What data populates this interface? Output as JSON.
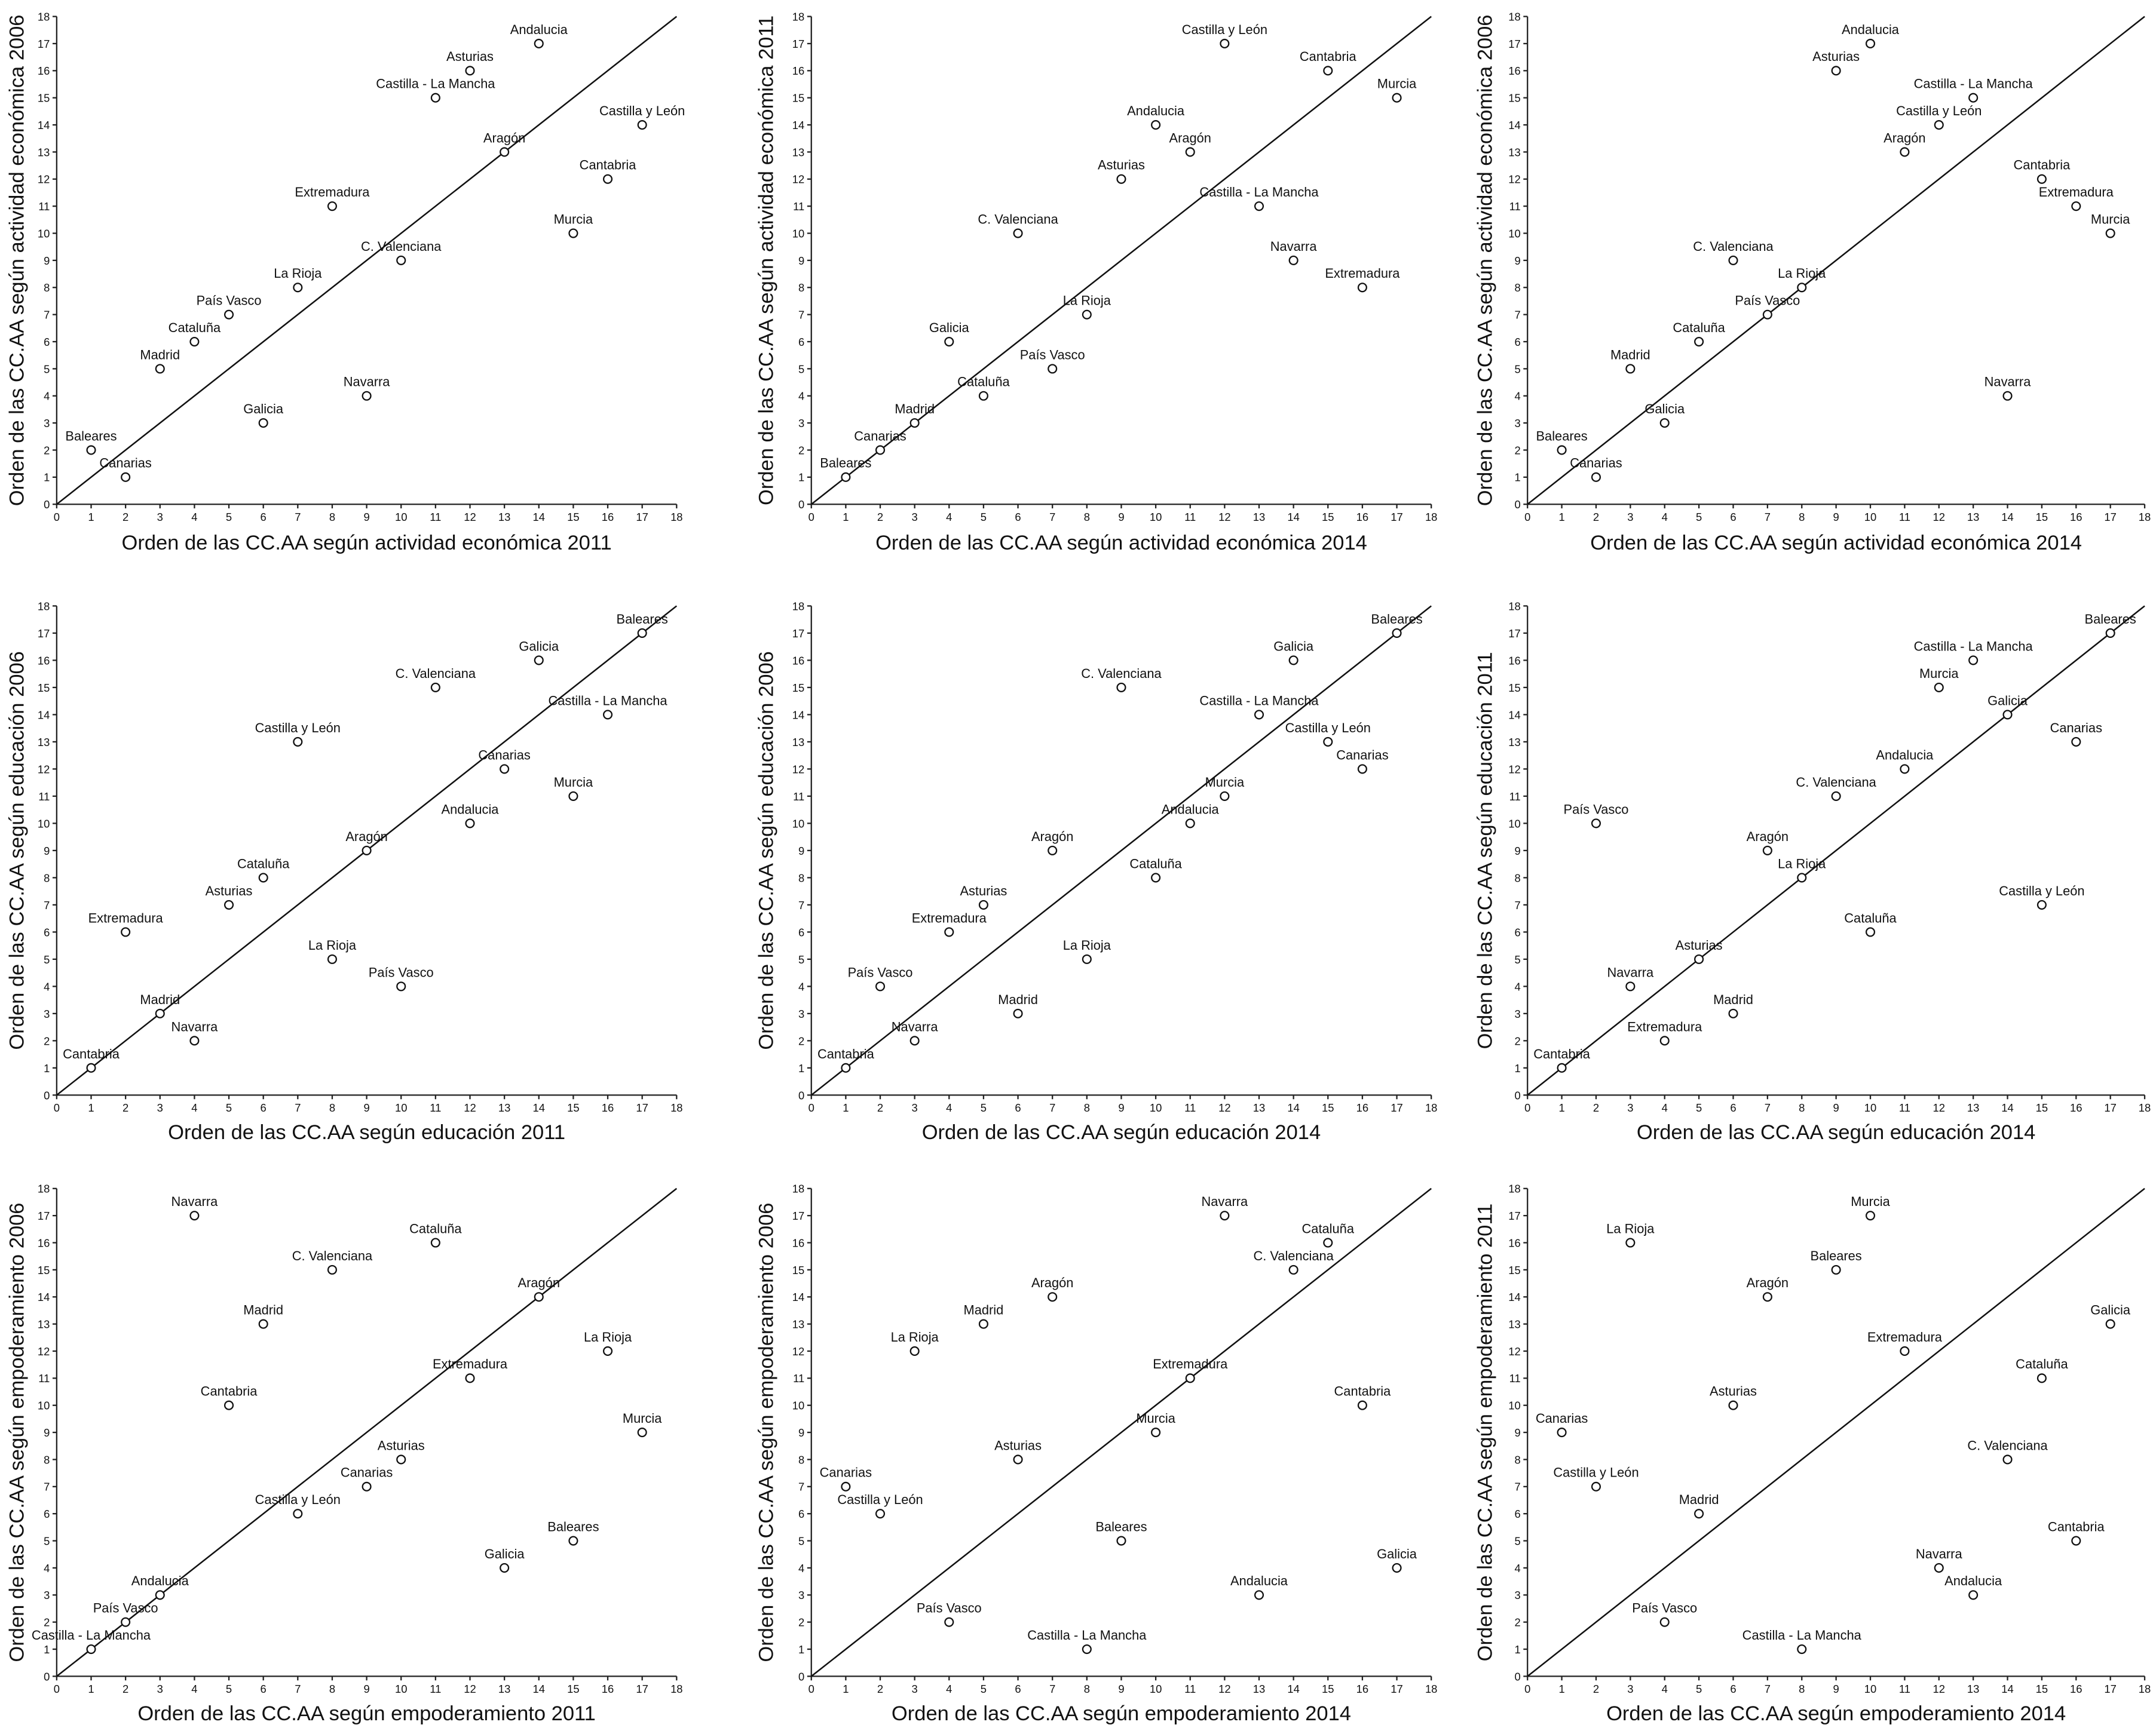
{
  "chart_data": [
    {
      "type": "scatter",
      "x_label": "Orden de las CC.AA según actividad económica 2011",
      "y_label": "Orden de las CC.AA según actividad económica 2006",
      "xlim": [
        0,
        18
      ],
      "ylim": [
        0,
        18
      ],
      "xticks": [
        0,
        1,
        2,
        3,
        4,
        5,
        6,
        7,
        8,
        9,
        10,
        11,
        12,
        13,
        14,
        15,
        16,
        17,
        18
      ],
      "yticks": [
        0,
        1,
        2,
        3,
        4,
        5,
        6,
        7,
        8,
        9,
        10,
        11,
        12,
        13,
        14,
        15,
        16,
        17,
        18
      ],
      "labels": [
        "Andalucia",
        "Asturias",
        "Castilla - La Mancha",
        "Castilla y León",
        "Aragón",
        "Cantabria",
        "Extremadura",
        "Murcia",
        "C. Valenciana",
        "La Rioja",
        "País Vasco",
        "Cataluña",
        "Madrid",
        "Navarra",
        "Galicia",
        "Baleares",
        "Canarias"
      ],
      "x": [
        14,
        12,
        11,
        17,
        13,
        16,
        8,
        15,
        10,
        7,
        5,
        4,
        3,
        9,
        6,
        1,
        2
      ],
      "values": [
        17,
        16,
        15,
        14,
        13,
        12,
        11,
        10,
        9,
        8,
        7,
        6,
        5,
        4,
        3,
        2,
        1
      ]
    },
    {
      "type": "scatter",
      "x_label": "Orden de las CC.AA según actividad económica 2014",
      "y_label": "Orden de las CC.AA según actividad económica 2011",
      "xlim": [
        0,
        18
      ],
      "ylim": [
        0,
        18
      ],
      "xticks": [
        0,
        1,
        2,
        3,
        4,
        5,
        6,
        7,
        8,
        9,
        10,
        11,
        12,
        13,
        14,
        15,
        16,
        17,
        18
      ],
      "yticks": [
        0,
        1,
        2,
        3,
        4,
        5,
        6,
        7,
        8,
        9,
        10,
        11,
        12,
        13,
        14,
        15,
        16,
        17,
        18
      ],
      "labels": [
        "Castilla y León",
        "Cantabria",
        "Murcia",
        "Andalucia",
        "Aragón",
        "Asturias",
        "Castilla - La Mancha",
        "C. Valenciana",
        "Navarra",
        "Extremadura",
        "La Rioja",
        "Galicia",
        "País Vasco",
        "Cataluña",
        "Madrid",
        "Canarias",
        "Baleares"
      ],
      "x": [
        12,
        15,
        17,
        10,
        11,
        9,
        13,
        6,
        14,
        16,
        8,
        4,
        7,
        5,
        3,
        2,
        1
      ],
      "values": [
        17,
        16,
        15,
        14,
        13,
        12,
        11,
        10,
        9,
        8,
        7,
        6,
        5,
        4,
        3,
        2,
        1
      ]
    },
    {
      "type": "scatter",
      "x_label": "Orden de las CC.AA según actividad económica 2014",
      "y_label": "Orden de las CC.AA según actividad económica 2006",
      "xlim": [
        0,
        18
      ],
      "ylim": [
        0,
        18
      ],
      "xticks": [
        0,
        1,
        2,
        3,
        4,
        5,
        6,
        7,
        8,
        9,
        10,
        11,
        12,
        13,
        14,
        15,
        16,
        17,
        18
      ],
      "yticks": [
        0,
        1,
        2,
        3,
        4,
        5,
        6,
        7,
        8,
        9,
        10,
        11,
        12,
        13,
        14,
        15,
        16,
        17,
        18
      ],
      "labels": [
        "Andalucia",
        "Asturias",
        "Castilla - La Mancha",
        "Castilla y León",
        "Aragón",
        "Cantabria",
        "Extremadura",
        "Murcia",
        "C. Valenciana",
        "La Rioja",
        "País Vasco",
        "Cataluña",
        "Madrid",
        "Navarra",
        "Galicia",
        "Baleares",
        "Canarias"
      ],
      "x": [
        10,
        9,
        13,
        12,
        11,
        15,
        16,
        17,
        6,
        8,
        7,
        5,
        3,
        14,
        4,
        1,
        2
      ],
      "values": [
        17,
        16,
        15,
        14,
        13,
        12,
        11,
        10,
        9,
        8,
        7,
        6,
        5,
        4,
        3,
        2,
        1
      ]
    },
    {
      "type": "scatter",
      "x_label": "Orden de las CC.AA según educación 2011",
      "y_label": "Orden de las CC.AA según educación 2006",
      "xlim": [
        0,
        18
      ],
      "ylim": [
        0,
        18
      ],
      "xticks": [
        0,
        1,
        2,
        3,
        4,
        5,
        6,
        7,
        8,
        9,
        10,
        11,
        12,
        13,
        14,
        15,
        16,
        17,
        18
      ],
      "yticks": [
        0,
        1,
        2,
        3,
        4,
        5,
        6,
        7,
        8,
        9,
        10,
        11,
        12,
        13,
        14,
        15,
        16,
        17,
        18
      ],
      "labels": [
        "Baleares",
        "Galicia",
        "C. Valenciana",
        "Castilla - La Mancha",
        "Castilla y León",
        "Canarias",
        "Murcia",
        "Andalucia",
        "Aragón",
        "Cataluña",
        "Asturias",
        "Extremadura",
        "La Rioja",
        "País Vasco",
        "Madrid",
        "Navarra",
        "Cantabria"
      ],
      "x": [
        17,
        14,
        11,
        16,
        7,
        13,
        15,
        12,
        9,
        6,
        5,
        2,
        8,
        10,
        3,
        4,
        1
      ],
      "values": [
        17,
        16,
        15,
        14,
        13,
        12,
        11,
        10,
        9,
        8,
        7,
        6,
        5,
        4,
        3,
        2,
        1
      ]
    },
    {
      "type": "scatter",
      "x_label": "Orden de las CC.AA según educación 2014",
      "y_label": "Orden de las CC.AA según educación 2006",
      "xlim": [
        0,
        18
      ],
      "ylim": [
        0,
        18
      ],
      "xticks": [
        0,
        1,
        2,
        3,
        4,
        5,
        6,
        7,
        8,
        9,
        10,
        11,
        12,
        13,
        14,
        15,
        16,
        17,
        18
      ],
      "yticks": [
        0,
        1,
        2,
        3,
        4,
        5,
        6,
        7,
        8,
        9,
        10,
        11,
        12,
        13,
        14,
        15,
        16,
        17,
        18
      ],
      "labels": [
        "Baleares",
        "Galicia",
        "C. Valenciana",
        "Castilla - La Mancha",
        "Castilla y León",
        "Canarias",
        "Murcia",
        "Andalucia",
        "Aragón",
        "Cataluña",
        "Asturias",
        "Extremadura",
        "La Rioja",
        "País Vasco",
        "Madrid",
        "Navarra",
        "Cantabria"
      ],
      "x": [
        17,
        14,
        9,
        13,
        15,
        16,
        12,
        11,
        7,
        10,
        5,
        4,
        8,
        2,
        6,
        3,
        1
      ],
      "values": [
        17,
        16,
        15,
        14,
        13,
        12,
        11,
        10,
        9,
        8,
        7,
        6,
        5,
        4,
        3,
        2,
        1
      ]
    },
    {
      "type": "scatter",
      "x_label": "Orden de las CC.AA según educación 2014",
      "y_label": "Orden de las CC.AA según educación 2011",
      "xlim": [
        0,
        18
      ],
      "ylim": [
        0,
        18
      ],
      "xticks": [
        0,
        1,
        2,
        3,
        4,
        5,
        6,
        7,
        8,
        9,
        10,
        11,
        12,
        13,
        14,
        15,
        16,
        17,
        18
      ],
      "yticks": [
        0,
        1,
        2,
        3,
        4,
        5,
        6,
        7,
        8,
        9,
        10,
        11,
        12,
        13,
        14,
        15,
        16,
        17,
        18
      ],
      "labels": [
        "Baleares",
        "Castilla - La Mancha",
        "Murcia",
        "Galicia",
        "Canarias",
        "Andalucia",
        "C. Valenciana",
        "País Vasco",
        "Aragón",
        "La Rioja",
        "Castilla y León",
        "Cataluña",
        "Asturias",
        "Navarra",
        "Madrid",
        "Extremadura",
        "Cantabria"
      ],
      "x": [
        17,
        13,
        12,
        14,
        16,
        11,
        9,
        2,
        7,
        8,
        15,
        10,
        5,
        3,
        6,
        4,
        1
      ],
      "values": [
        17,
        16,
        15,
        14,
        13,
        12,
        11,
        10,
        9,
        8,
        7,
        6,
        5,
        4,
        3,
        2,
        1
      ]
    },
    {
      "type": "scatter",
      "x_label": "Orden de las CC.AA según empoderamiento 2011",
      "y_label": "Orden de las CC.AA según empoderamiento 2006",
      "xlim": [
        0,
        18
      ],
      "ylim": [
        0,
        18
      ],
      "xticks": [
        0,
        1,
        2,
        3,
        4,
        5,
        6,
        7,
        8,
        9,
        10,
        11,
        12,
        13,
        14,
        15,
        16,
        17,
        18
      ],
      "yticks": [
        0,
        1,
        2,
        3,
        4,
        5,
        6,
        7,
        8,
        9,
        10,
        11,
        12,
        13,
        14,
        15,
        16,
        17,
        18
      ],
      "labels": [
        "Navarra",
        "Cataluña",
        "C. Valenciana",
        "Aragón",
        "Madrid",
        "La Rioja",
        "Extremadura",
        "Cantabria",
        "Murcia",
        "Asturias",
        "Canarias",
        "Castilla y León",
        "Baleares",
        "Galicia",
        "Andalucia",
        "País Vasco",
        "Castilla - La Mancha"
      ],
      "x": [
        4,
        11,
        8,
        14,
        6,
        16,
        12,
        5,
        17,
        10,
        9,
        7,
        15,
        13,
        3,
        2,
        1
      ],
      "values": [
        17,
        16,
        15,
        14,
        13,
        12,
        11,
        10,
        9,
        8,
        7,
        6,
        5,
        4,
        3,
        2,
        1
      ]
    },
    {
      "type": "scatter",
      "x_label": "Orden de las CC.AA según empoderamiento 2014",
      "y_label": "Orden de las CC.AA según empoderamiento 2006",
      "xlim": [
        0,
        18
      ],
      "ylim": [
        0,
        18
      ],
      "xticks": [
        0,
        1,
        2,
        3,
        4,
        5,
        6,
        7,
        8,
        9,
        10,
        11,
        12,
        13,
        14,
        15,
        16,
        17,
        18
      ],
      "yticks": [
        0,
        1,
        2,
        3,
        4,
        5,
        6,
        7,
        8,
        9,
        10,
        11,
        12,
        13,
        14,
        15,
        16,
        17,
        18
      ],
      "labels": [
        "Navarra",
        "Cataluña",
        "C. Valenciana",
        "Aragón",
        "Madrid",
        "La Rioja",
        "Extremadura",
        "Cantabria",
        "Murcia",
        "Asturias",
        "Canarias",
        "Castilla y León",
        "Baleares",
        "Galicia",
        "Andalucia",
        "País Vasco",
        "Castilla - La Mancha"
      ],
      "x": [
        12,
        15,
        14,
        7,
        5,
        3,
        11,
        16,
        10,
        6,
        1,
        2,
        9,
        17,
        13,
        4,
        8
      ],
      "values": [
        17,
        16,
        15,
        14,
        13,
        12,
        11,
        10,
        9,
        8,
        7,
        6,
        5,
        4,
        3,
        2,
        1
      ]
    },
    {
      "type": "scatter",
      "x_label": "Orden de las CC.AA según empoderamiento 2014",
      "y_label": "Orden de las CC.AA según empoderamiento 2011",
      "xlim": [
        0,
        18
      ],
      "ylim": [
        0,
        18
      ],
      "xticks": [
        0,
        1,
        2,
        3,
        4,
        5,
        6,
        7,
        8,
        9,
        10,
        11,
        12,
        13,
        14,
        15,
        16,
        17,
        18
      ],
      "yticks": [
        0,
        1,
        2,
        3,
        4,
        5,
        6,
        7,
        8,
        9,
        10,
        11,
        12,
        13,
        14,
        15,
        16,
        17,
        18
      ],
      "labels": [
        "Murcia",
        "La Rioja",
        "Baleares",
        "Aragón",
        "Galicia",
        "Extremadura",
        "Cataluña",
        "Asturias",
        "Canarias",
        "C. Valenciana",
        "Castilla y León",
        "Madrid",
        "Cantabria",
        "Navarra",
        "Andalucia",
        "País Vasco",
        "Castilla - La Mancha"
      ],
      "x": [
        10,
        3,
        9,
        7,
        17,
        11,
        15,
        6,
        1,
        14,
        2,
        5,
        16,
        12,
        13,
        4,
        8
      ],
      "values": [
        17,
        16,
        15,
        14,
        13,
        12,
        11,
        10,
        9,
        8,
        7,
        6,
        5,
        4,
        3,
        2,
        1
      ]
    }
  ]
}
